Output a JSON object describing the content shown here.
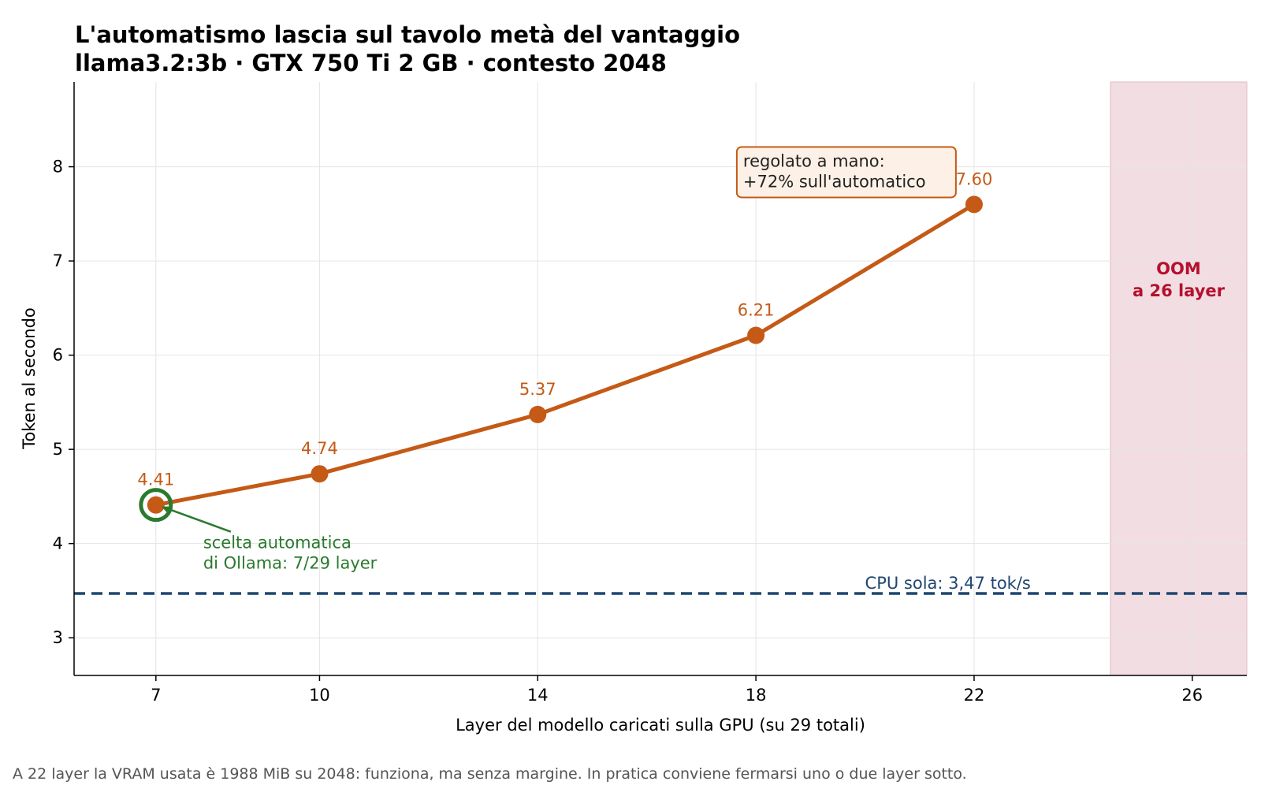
{
  "chart_data": {
    "type": "line",
    "title": "L'automatismo lascia sul tavolo metà del vantaggio",
    "subtitle": "llama3.2:3b · GTX 750 Ti 2 GB · contesto 2048",
    "xlabel": "Layer del modello caricati sulla GPU (su 29 totali)",
    "ylabel": "Token al secondo",
    "xlim": [
      5.5,
      27.0
    ],
    "ylim": [
      2.6,
      8.9
    ],
    "xticks": [
      7,
      10,
      14,
      18,
      22,
      26
    ],
    "yticks": [
      3,
      4,
      5,
      6,
      7,
      8
    ],
    "grid": true,
    "series": [
      {
        "x": [
          7,
          10,
          14,
          18,
          22
        ],
        "y": [
          4.41,
          4.74,
          5.37,
          6.21,
          7.6
        ],
        "labels": [
          "4.41",
          "4.74",
          "5.37",
          "6.21",
          "7.60"
        ],
        "color": "#c45a16"
      }
    ],
    "baseline": {
      "value": 3.47,
      "label": "CPU sola: 3,47 tok/s",
      "color": "#1f4670"
    },
    "oom_region": {
      "x_from": 24.5,
      "x_to": 27.0,
      "label_line1": "OOM",
      "label_line2": "a 26 layer",
      "color": "#b5112e"
    },
    "auto_annotation": {
      "x": 7,
      "y": 4.41,
      "line1": "scelta automatica",
      "line2": "di Ollama: 7/29 layer",
      "color": "#2a7a2e"
    },
    "manual_annotation": {
      "line1": "regolato a mano:",
      "line2": "+72% sull'automatico",
      "color": "#c45a16"
    },
    "footer": "A 22 layer la VRAM usata è 1988 MiB su 2048: funziona, ma senza margine. In pratica conviene fermarsi uno o due layer sotto."
  }
}
